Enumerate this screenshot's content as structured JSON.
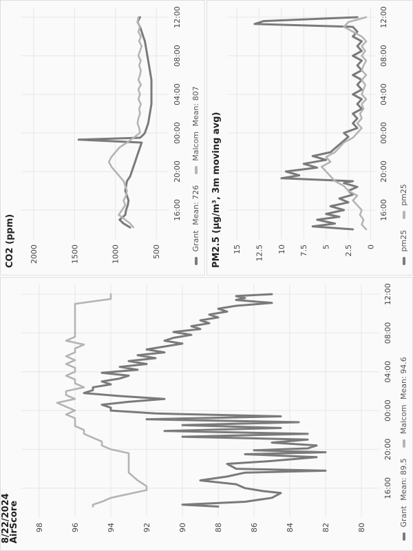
{
  "page": {
    "date_label": "8/22/2024",
    "colors": {
      "grant": "#7a7a7a",
      "malcom": "#b4b4b4",
      "grid": "#e6e6e6",
      "axis_text": "#444444"
    }
  },
  "chart_data": [
    {
      "id": "airscore",
      "type": "line",
      "title": "AirScore",
      "ylim": [
        79,
        99
      ],
      "yticks": [
        80,
        82,
        84,
        86,
        88,
        90,
        92,
        94,
        96,
        98
      ],
      "xticks": [
        "16:00",
        "20:00",
        "00:00",
        "04:00",
        "08:00",
        "12:00"
      ],
      "xlim": [
        13.0,
        37.0
      ],
      "legend": [
        {
          "name": "Grant",
          "mean_label": "Mean: 89.5"
        },
        {
          "name": "Malcom",
          "mean_label": "Mean: 94.6"
        }
      ],
      "series": [
        {
          "name": "Grant",
          "x": [
            14.1,
            14.3,
            14.6,
            15.0,
            15.5,
            15.7,
            16.0,
            16.4,
            16.8,
            17.2,
            17.6,
            17.8,
            18.0,
            18.5,
            18.8,
            19.2,
            19.5,
            19.7,
            19.9,
            20.1,
            20.4,
            20.7,
            21.0,
            21.3,
            21.6,
            21.9,
            22.2,
            22.5,
            22.8,
            23.1,
            23.4,
            23.7,
            24.0,
            24.3,
            24.6,
            24.9,
            25.2,
            25.5,
            25.8,
            26.1,
            26.4,
            26.7,
            27.0,
            27.3,
            27.6,
            27.9,
            28.2,
            28.5,
            28.8,
            29.1,
            29.4,
            29.7,
            30.0,
            30.3,
            30.6,
            30.9,
            31.2,
            31.5,
            31.8,
            32.1,
            32.4,
            32.7,
            33.0,
            33.3,
            33.6,
            33.9,
            34.2,
            34.5,
            34.8,
            35.1,
            35.4,
            35.6,
            35.8,
            36.0
          ],
          "y": [
            88.0,
            90.0,
            86.5,
            85.0,
            84.5,
            85.5,
            86.5,
            87.0,
            89.0,
            87.5,
            86.5,
            82.0,
            87.0,
            87.5,
            85.0,
            82.5,
            86.5,
            82.0,
            86.0,
            83.0,
            82.5,
            85.0,
            83.0,
            90.0,
            83.0,
            91.0,
            84.5,
            90.0,
            83.5,
            92.0,
            84.5,
            91.5,
            94.0,
            94.0,
            94.5,
            93.0,
            91.0,
            93.5,
            95.5,
            95.0,
            95.0,
            94.0,
            94.5,
            93.5,
            93.0,
            94.5,
            92.5,
            93.5,
            92.0,
            93.0,
            91.5,
            92.5,
            91.0,
            92.0,
            91.0,
            90.0,
            91.0,
            90.5,
            89.5,
            90.5,
            89.0,
            89.5,
            88.5,
            89.0,
            88.0,
            88.5,
            87.5,
            88.0,
            87.0,
            85.0,
            87.0,
            86.5,
            87.0,
            85.0
          ]
        },
        {
          "name": "Malcom",
          "x": [
            14.1,
            14.3,
            14.6,
            15.0,
            15.4,
            15.6,
            15.8,
            16.2,
            16.8,
            17.6,
            18.0,
            18.6,
            19.2,
            19.6,
            20.0,
            20.4,
            20.8,
            21.2,
            21.6,
            22.0,
            22.4,
            22.8,
            23.2,
            23.6,
            24.0,
            24.4,
            24.8,
            25.2,
            25.6,
            26.0,
            26.4,
            26.8,
            27.2,
            27.6,
            28.0,
            28.4,
            28.8,
            29.2,
            29.6,
            30.0,
            30.4,
            30.8,
            31.2,
            31.6,
            32.0,
            32.4,
            32.8,
            33.2,
            33.6,
            34.0,
            34.5,
            35.0,
            35.5,
            36.0
          ],
          "y": [
            95.0,
            95.0,
            94.5,
            94.0,
            93.0,
            92.5,
            92.0,
            92.0,
            92.5,
            93.0,
            93.0,
            93.0,
            93.0,
            93.0,
            94.0,
            94.5,
            94.5,
            95.0,
            95.5,
            95.5,
            96.0,
            96.0,
            96.0,
            96.5,
            96.0,
            96.5,
            97.0,
            96.0,
            96.5,
            96.5,
            95.5,
            96.0,
            96.0,
            96.5,
            96.0,
            96.0,
            96.5,
            96.0,
            96.5,
            96.0,
            96.0,
            95.5,
            96.5,
            96.0,
            96.0,
            96.0,
            96.0,
            96.0,
            96.0,
            96.0,
            96.0,
            96.0,
            94.0,
            94.0
          ]
        }
      ]
    },
    {
      "id": "co2",
      "type": "line",
      "title": "CO2 (ppm)",
      "ylim": [
        350,
        2150
      ],
      "yticks": [
        500,
        1000,
        1500,
        2000
      ],
      "xticks": [
        "16:00",
        "20:00",
        "00:00",
        "04:00",
        "08:00",
        "12:00"
      ],
      "xlim": [
        13.0,
        37.0
      ],
      "legend": [
        {
          "name": "Grant",
          "mean_label": "Mean: 726"
        },
        {
          "name": "Malcom",
          "mean_label": "Mean: 807"
        }
      ],
      "series": [
        {
          "name": "Grant",
          "x": [
            14.2,
            14.6,
            15.0,
            15.5,
            16.0,
            16.5,
            17.0,
            17.5,
            18.0,
            18.5,
            19.0,
            19.5,
            20.0,
            20.5,
            21.0,
            21.5,
            22.0,
            22.5,
            23.0,
            23.3,
            23.5,
            23.8,
            24.0,
            24.5,
            25.0,
            25.5,
            26.0,
            26.5,
            27.0,
            27.5,
            28.0,
            28.5,
            29.0,
            29.5,
            30.0,
            30.5,
            31.0,
            31.5,
            32.0,
            32.5,
            33.0,
            33.5,
            34.0,
            34.5,
            35.0,
            35.5,
            36.0
          ],
          "y": [
            820,
            900,
            950,
            880,
            870,
            850,
            840,
            860,
            880,
            870,
            860,
            820,
            800,
            780,
            760,
            740,
            720,
            700,
            680,
            1450,
            700,
            660,
            640,
            620,
            600,
            590,
            580,
            570,
            560,
            560,
            560,
            560,
            560,
            560,
            570,
            580,
            590,
            600,
            610,
            620,
            630,
            640,
            660,
            680,
            700,
            730,
            700
          ]
        },
        {
          "name": "Malcom",
          "x": [
            14.2,
            14.6,
            15.0,
            15.5,
            16.0,
            16.5,
            17.0,
            17.5,
            18.0,
            18.5,
            19.0,
            19.5,
            20.0,
            20.5,
            21.0,
            21.5,
            22.0,
            22.5,
            23.0,
            23.5,
            24.0,
            24.5,
            25.0,
            25.5,
            26.0,
            26.5,
            27.0,
            27.5,
            28.0,
            28.5,
            29.0,
            29.5,
            30.0,
            30.5,
            31.0,
            31.5,
            32.0,
            32.5,
            33.0,
            33.5,
            34.0,
            34.5,
            35.0,
            35.5,
            36.0
          ],
          "y": [
            780,
            820,
            880,
            960,
            920,
            880,
            900,
            870,
            860,
            880,
            900,
            950,
            1000,
            1050,
            1080,
            1050,
            1000,
            950,
            860,
            780,
            700,
            710,
            730,
            720,
            700,
            710,
            690,
            720,
            700,
            720,
            690,
            720,
            700,
            690,
            710,
            690,
            720,
            700,
            680,
            710,
            690,
            720,
            700,
            730,
            720
          ]
        }
      ]
    },
    {
      "id": "pm25",
      "type": "line",
      "title": "PM2.5 (μg/m³, 3m moving avg)",
      "ylim": [
        -0.5,
        16.0
      ],
      "yticks": [
        "0",
        "2.5",
        "5",
        "7.5",
        "10",
        "12.5",
        "15"
      ],
      "ytick_values": [
        0,
        2.5,
        5,
        7.5,
        10,
        12.5,
        15
      ],
      "xticks": [
        "16:00",
        "20:00",
        "00:00",
        "04:00",
        "08:00",
        "12:00"
      ],
      "xlim": [
        13.0,
        37.0
      ],
      "legend": [
        {
          "name": "pm25",
          "mean_label": ""
        },
        {
          "name": "pm25",
          "mean_label": ""
        }
      ],
      "series": [
        {
          "name": "pm25",
          "x": [
            14.0,
            14.3,
            14.6,
            15.0,
            15.3,
            15.6,
            16.0,
            16.4,
            16.8,
            17.2,
            17.6,
            18.0,
            18.4,
            18.8,
            19.0,
            19.3,
            19.6,
            20.0,
            20.4,
            20.8,
            21.2,
            21.6,
            22.0,
            22.4,
            22.8,
            23.2,
            23.6,
            24.0,
            24.5,
            25.0,
            25.5,
            26.0,
            26.5,
            27.0,
            27.5,
            28.0,
            28.5,
            29.0,
            29.5,
            30.0,
            30.5,
            31.0,
            31.5,
            32.0,
            32.5,
            33.0,
            33.5,
            34.0,
            34.5,
            35.0,
            35.3,
            35.6,
            36.0
          ],
          "y": [
            2.0,
            6.5,
            4.0,
            6.0,
            3.5,
            5.0,
            3.0,
            4.5,
            2.5,
            3.5,
            2.0,
            2.5,
            1.5,
            3.0,
            2.0,
            10.0,
            8.0,
            9.5,
            6.0,
            7.5,
            5.0,
            6.5,
            4.5,
            4.0,
            3.5,
            3.0,
            2.5,
            3.0,
            1.5,
            2.0,
            1.5,
            2.0,
            1.0,
            1.5,
            1.0,
            2.0,
            1.0,
            1.5,
            1.0,
            2.0,
            1.0,
            1.5,
            1.0,
            2.0,
            1.0,
            1.5,
            1.0,
            2.0,
            1.5,
            2.0,
            13.0,
            12.0,
            1.5
          ]
        },
        {
          "name": "pm25",
          "x": [
            14.0,
            14.5,
            15.0,
            15.5,
            16.0,
            16.5,
            17.0,
            17.5,
            18.0,
            18.5,
            19.0,
            19.5,
            20.0,
            20.5,
            21.0,
            21.5,
            22.0,
            22.5,
            23.0,
            23.5,
            24.0,
            24.5,
            25.0,
            25.5,
            26.0,
            26.5,
            27.0,
            27.5,
            28.0,
            28.5,
            29.0,
            29.5,
            30.0,
            30.5,
            31.0,
            31.5,
            32.0,
            32.5,
            33.0,
            33.5,
            34.0,
            34.5,
            35.0,
            35.5,
            36.0
          ],
          "y": [
            0.5,
            1.0,
            0.8,
            1.2,
            1.0,
            1.5,
            2.0,
            1.5,
            2.5,
            3.0,
            4.0,
            4.5,
            5.0,
            5.5,
            4.5,
            5.0,
            4.0,
            3.5,
            3.0,
            2.0,
            1.5,
            1.0,
            1.5,
            1.0,
            1.2,
            0.8,
            1.0,
            0.5,
            1.0,
            0.8,
            0.6,
            1.0,
            0.5,
            1.0,
            0.8,
            0.5,
            1.0,
            0.6,
            1.0,
            0.5,
            1.0,
            2.0,
            3.0,
            2.5,
            0.5
          ]
        }
      ]
    }
  ]
}
